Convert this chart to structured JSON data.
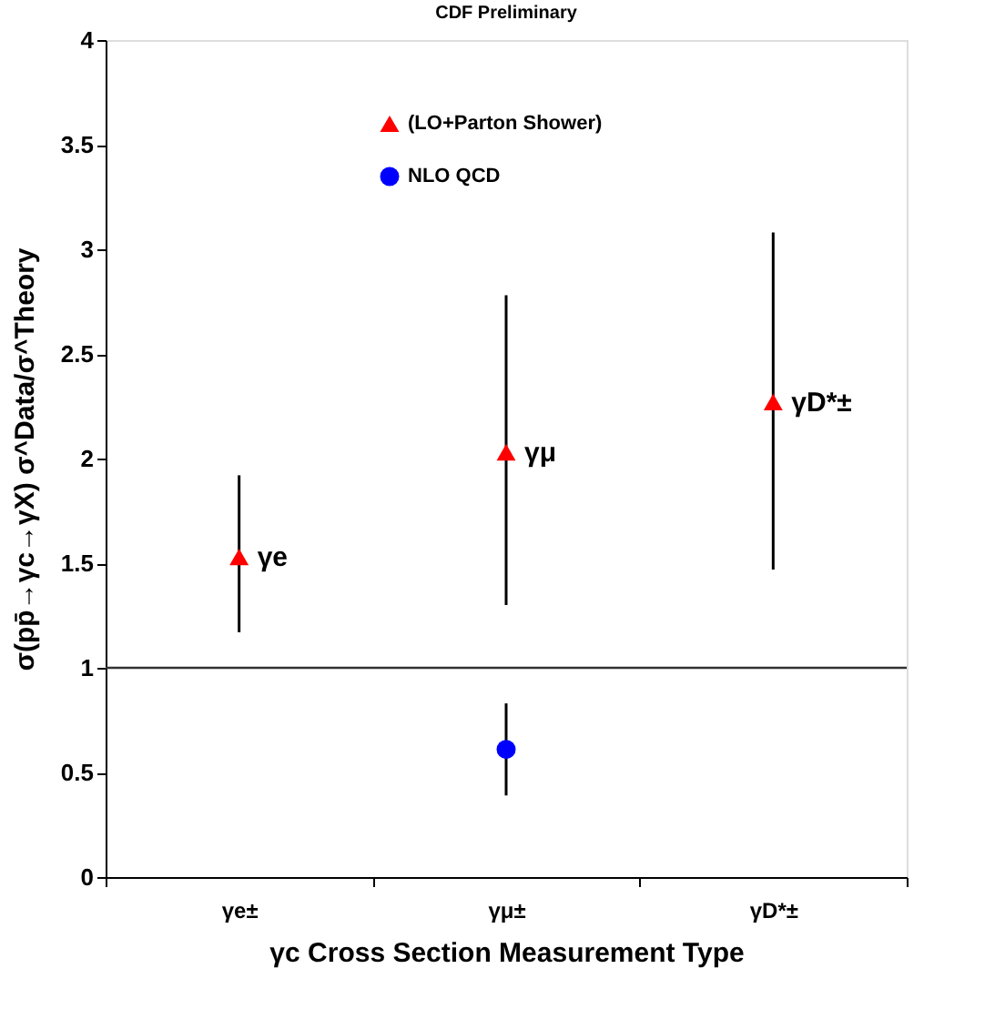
{
  "chart_data": {
    "type": "scatter",
    "title": "CDF Preliminary",
    "xlabel": "γc Cross Section Measurement Type",
    "ylabel": "σ(pp̄→γc→γX) σ^Data/σ^Theory",
    "categories": [
      "γe±",
      "γμ±",
      "γD*±"
    ],
    "series": [
      {
        "name": "(LO+Parton Shower)",
        "color": "#ff0000",
        "marker": "triangle",
        "values": [
          1.53,
          2.03,
          2.27
        ],
        "errors": [
          [
            1.17,
            1.92
          ],
          [
            1.3,
            2.78
          ],
          [
            1.47,
            3.08
          ]
        ]
      },
      {
        "name": "NLO QCD",
        "color": "#0000ff",
        "marker": "circle",
        "values": [
          null,
          0.61,
          null
        ],
        "errors": [
          null,
          [
            0.39,
            0.83
          ],
          null
        ]
      }
    ],
    "ylim": [
      0,
      4
    ],
    "yticks": [
      0,
      0.5,
      1,
      1.5,
      2,
      2.5,
      3,
      3.5,
      4
    ],
    "ref_lines": [
      {
        "axis": "y",
        "value": 1,
        "label": null
      }
    ],
    "annotations": [
      {
        "text": "γe",
        "x": "γe±",
        "y": 1.53
      },
      {
        "text": "γμ",
        "x": "γμ±",
        "y": 2.03
      },
      {
        "text": "γD*±",
        "x": "γD*±",
        "y": 2.27
      }
    ],
    "legend": "top",
    "grid": false
  }
}
